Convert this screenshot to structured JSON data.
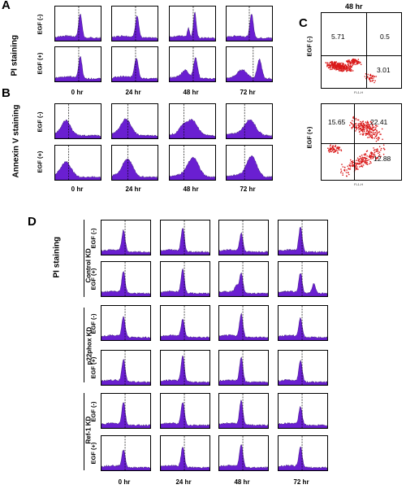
{
  "panels": {
    "A": {
      "letter": "A",
      "stain": "PI staining"
    },
    "B": {
      "letter": "B",
      "stain": "Annexin V staining"
    },
    "C": {
      "letter": "C",
      "title": "48 hr",
      "top": {
        "ul": "5.71",
        "ur": "0.5",
        "lr": "3.01"
      },
      "bottom": {
        "ul": "15.65",
        "ur": "22.41",
        "lr": "12.88"
      },
      "xaxis": "FL1-H"
    },
    "D": {
      "letter": "D",
      "stain": "PI staining",
      "groups": [
        "Control KD",
        "p22phox KD",
        "Ref-1 KD"
      ],
      "phox_sup": "phox"
    }
  },
  "egf": {
    "neg": "EGF (-)",
    "pos": "EGF (+)"
  },
  "times": [
    "0 hr",
    "24 hr",
    "48 hr",
    "72 hr"
  ],
  "colors": {
    "hist_fill": "#6a1fd1",
    "hist_stroke": "#2b0a66",
    "dots": "#d91a1a"
  }
}
